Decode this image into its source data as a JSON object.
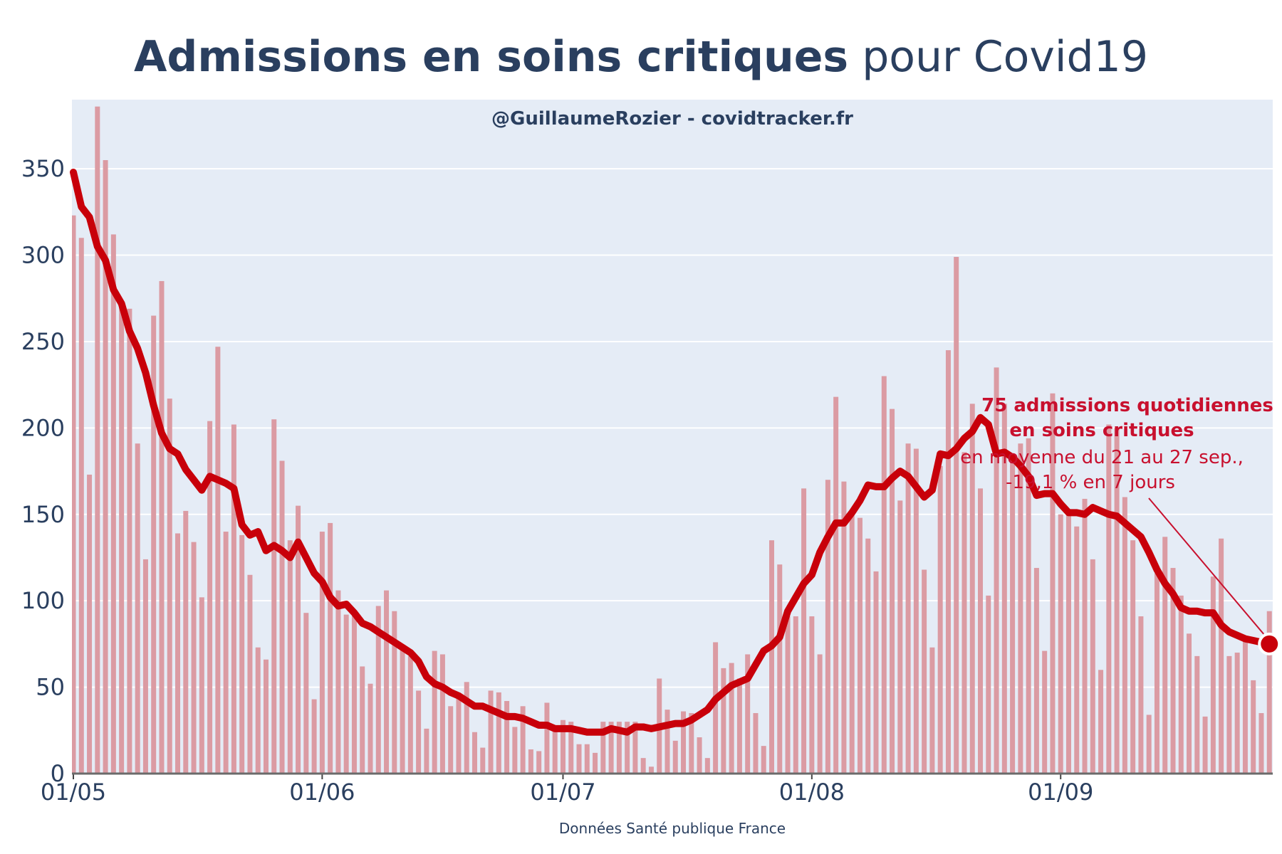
{
  "chart_data": {
    "type": "bar",
    "title_bold": "Admissions en soins critiques",
    "title_rest": " pour Covid19",
    "subtitle": "@GuillaumeRozier - covidtracker.fr",
    "source": "Données Santé publique France",
    "x_start": "01/05",
    "x_ticks": [
      {
        "label": "01/05",
        "day": 0
      },
      {
        "label": "01/06",
        "day": 31
      },
      {
        "label": "01/07",
        "day": 61
      },
      {
        "label": "01/08",
        "day": 92
      },
      {
        "label": "01/09",
        "day": 123
      }
    ],
    "y_ticks": [
      0,
      50,
      100,
      150,
      200,
      250,
      300,
      350
    ],
    "ylim": [
      0,
      390
    ],
    "grid": true,
    "colors": {
      "plot_bg": "#e5ecf6",
      "bar": "#db9ba3",
      "line": "#c8000a",
      "marker": "#c8000a",
      "title": "#2a3f5f",
      "annotation": "#c8102e"
    },
    "series": [
      {
        "type": "bar",
        "values": [
          323,
          310,
          173,
          386,
          355,
          312,
          273,
          269,
          191,
          124,
          265,
          285,
          217,
          139,
          152,
          134,
          102,
          204,
          247,
          140,
          202,
          138,
          115,
          73,
          66,
          205,
          181,
          135,
          155,
          93,
          43,
          140,
          145,
          106,
          92,
          92,
          62,
          52,
          97,
          106,
          94,
          74,
          68,
          48,
          26,
          71,
          69,
          39,
          45,
          53,
          24,
          15,
          48,
          47,
          42,
          27,
          39,
          14,
          13,
          41,
          27,
          31,
          30,
          17,
          17,
          12,
          30,
          30,
          30,
          30,
          30,
          9,
          4,
          55,
          37,
          19,
          36,
          35,
          21,
          9,
          76,
          61,
          64,
          55,
          69,
          35,
          16,
          135,
          121,
          91,
          91,
          165,
          91,
          69,
          170,
          218,
          169,
          150,
          148,
          136,
          117,
          230,
          211,
          158,
          191,
          188,
          118,
          73,
          178,
          245,
          299,
          186,
          214,
          165,
          103,
          235,
          214,
          185,
          191,
          194,
          119,
          71,
          220,
          150,
          150,
          143,
          159,
          124,
          60,
          202,
          200,
          160,
          135,
          91,
          34,
          116,
          137,
          119,
          103,
          81,
          68,
          33,
          114,
          136,
          68,
          70,
          78,
          54,
          35,
          94
        ]
      },
      {
        "type": "line",
        "values": [
          348,
          328,
          322,
          305,
          297,
          280,
          272,
          256,
          246,
          232,
          213,
          197,
          188,
          185,
          176,
          170,
          164,
          172,
          170,
          168,
          165,
          144,
          138,
          140,
          129,
          132,
          129,
          125,
          134,
          125,
          116,
          111,
          102,
          97,
          98,
          93,
          87,
          85,
          82,
          79,
          76,
          73,
          70,
          65,
          56,
          52,
          50,
          47,
          45,
          42,
          39,
          39,
          37,
          35,
          33,
          33,
          32,
          30,
          28,
          28,
          26,
          26,
          26,
          25,
          24,
          24,
          24,
          26,
          25,
          24,
          27,
          27,
          26,
          27,
          28,
          29,
          29,
          31,
          34,
          37,
          43,
          47,
          51,
          53,
          55,
          63,
          71,
          74,
          79,
          94,
          102,
          110,
          115,
          128,
          137,
          145,
          145,
          151,
          158,
          167,
          166,
          166,
          171,
          175,
          172,
          166,
          160,
          164,
          185,
          184,
          188,
          194,
          198,
          206,
          202,
          185,
          186,
          183,
          178,
          172,
          161,
          162,
          162,
          156,
          151,
          151,
          150,
          154,
          152,
          150,
          149,
          145,
          141,
          137,
          128,
          118,
          110,
          104,
          96,
          94,
          94,
          93,
          93,
          86,
          82,
          80,
          78,
          77,
          76
        ]
      }
    ],
    "annotation": {
      "line1": "75 admissions quotidiennes",
      "line2": "en soins critiques",
      "line3": "en moyenne du 21 au 27 sep.,",
      "line4": "-19,1 % en 7 jours",
      "point_day": 149,
      "point_value": 75
    }
  }
}
